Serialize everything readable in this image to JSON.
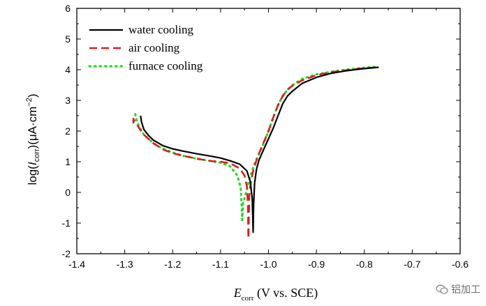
{
  "chart_data": {
    "type": "line",
    "title": "",
    "xlabel": {
      "main": "E",
      "sub": "corr",
      "rest": " (V vs. SCE)"
    },
    "ylabel": {
      "pre": "log(",
      "italic": "I",
      "sub": "corr",
      "mid": ")(μA·cm",
      "sup": "−2",
      "post": ")"
    },
    "xlim": [
      -1.4,
      -0.6
    ],
    "ylim": [
      -2,
      6
    ],
    "xticks": [
      -1.4,
      -1.3,
      -1.2,
      -1.1,
      -1.0,
      -0.9,
      -0.8,
      -0.7,
      -0.6
    ],
    "xtick_labels": [
      "-1.4",
      "-1.3",
      "-1.2",
      "-1.1",
      "-1.0",
      "-0.9",
      "-0.8",
      "-0.7",
      "-0.6"
    ],
    "yticks": [
      -2,
      -1,
      0,
      1,
      2,
      3,
      4,
      5,
      6
    ],
    "ytick_labels": [
      "-2",
      "-1",
      "0",
      "1",
      "2",
      "3",
      "4",
      "5",
      "6"
    ],
    "grid": false,
    "legend_position": "top-left",
    "series": [
      {
        "name": "water cooling",
        "color": "#000000",
        "style": "solid",
        "x": [
          -1.267,
          -1.265,
          -1.26,
          -1.25,
          -1.24,
          -1.22,
          -1.2,
          -1.18,
          -1.15,
          -1.12,
          -1.1,
          -1.08,
          -1.06,
          -1.045,
          -1.038,
          -1.034,
          -1.033,
          -1.032,
          -1.031,
          -1.029,
          -1.025,
          -1.02,
          -1.01,
          -1.0,
          -0.99,
          -0.98,
          -0.97,
          -0.96,
          -0.95,
          -0.93,
          -0.9,
          -0.87,
          -0.84,
          -0.81,
          -0.79,
          -0.77
        ],
        "y": [
          2.5,
          2.3,
          2.05,
          1.85,
          1.7,
          1.52,
          1.42,
          1.35,
          1.26,
          1.18,
          1.12,
          1.03,
          0.92,
          0.7,
          0.35,
          -0.2,
          -0.75,
          -1.3,
          -0.4,
          0.3,
          0.75,
          1.05,
          1.4,
          1.75,
          2.1,
          2.5,
          2.9,
          3.15,
          3.3,
          3.55,
          3.75,
          3.88,
          3.96,
          4.02,
          4.05,
          4.08
        ]
      },
      {
        "name": "air cooling",
        "color": "#e31a1c",
        "style": "dashed",
        "x": [
          -1.282,
          -1.282,
          -1.278,
          -1.27,
          -1.26,
          -1.24,
          -1.22,
          -1.2,
          -1.18,
          -1.15,
          -1.12,
          -1.1,
          -1.08,
          -1.06,
          -1.05,
          -1.045,
          -1.043,
          -1.042,
          -1.041,
          -1.04,
          -1.037,
          -1.033,
          -1.025,
          -1.015,
          -1.0,
          -0.99,
          -0.98,
          -0.97,
          -0.96,
          -0.95,
          -0.93,
          -0.9,
          -0.87,
          -0.84,
          -0.81,
          -0.79,
          -0.77
        ],
        "y": [
          2.25,
          2.4,
          2.3,
          2.1,
          1.88,
          1.6,
          1.4,
          1.28,
          1.2,
          1.1,
          1.02,
          1.0,
          0.95,
          0.78,
          0.55,
          0.2,
          -0.4,
          -1.5,
          -0.8,
          -0.1,
          0.3,
          0.65,
          1.05,
          1.45,
          2.0,
          2.45,
          2.85,
          3.15,
          3.35,
          3.48,
          3.65,
          3.82,
          3.92,
          3.98,
          4.03,
          4.06,
          4.08
        ]
      },
      {
        "name": "furnace cooling",
        "color": "#22dd22",
        "style": "dotted",
        "x": [
          -1.278,
          -1.276,
          -1.27,
          -1.26,
          -1.24,
          -1.22,
          -1.2,
          -1.18,
          -1.15,
          -1.12,
          -1.1,
          -1.08,
          -1.065,
          -1.058,
          -1.056,
          -1.055,
          -1.054,
          -1.053,
          -1.05,
          -1.045,
          -1.04,
          -1.035,
          -1.03,
          -1.02,
          -1.01,
          -1.0,
          -0.99,
          -0.98,
          -0.97,
          -0.96,
          -0.95,
          -0.93,
          -0.9,
          -0.87,
          -0.84,
          -0.81,
          -0.79,
          -0.775
        ],
        "y": [
          2.55,
          2.4,
          2.15,
          1.88,
          1.6,
          1.42,
          1.3,
          1.2,
          1.1,
          1.02,
          0.97,
          0.85,
          0.55,
          0.15,
          -0.45,
          -0.9,
          -0.6,
          -0.35,
          -0.2,
          0.1,
          0.4,
          0.65,
          0.9,
          1.25,
          1.6,
          2.0,
          2.45,
          2.85,
          3.15,
          3.35,
          3.5,
          3.7,
          3.85,
          3.93,
          4.0,
          4.05,
          4.08,
          4.1
        ]
      }
    ]
  },
  "watermark": {
    "text": "铝加工"
  }
}
